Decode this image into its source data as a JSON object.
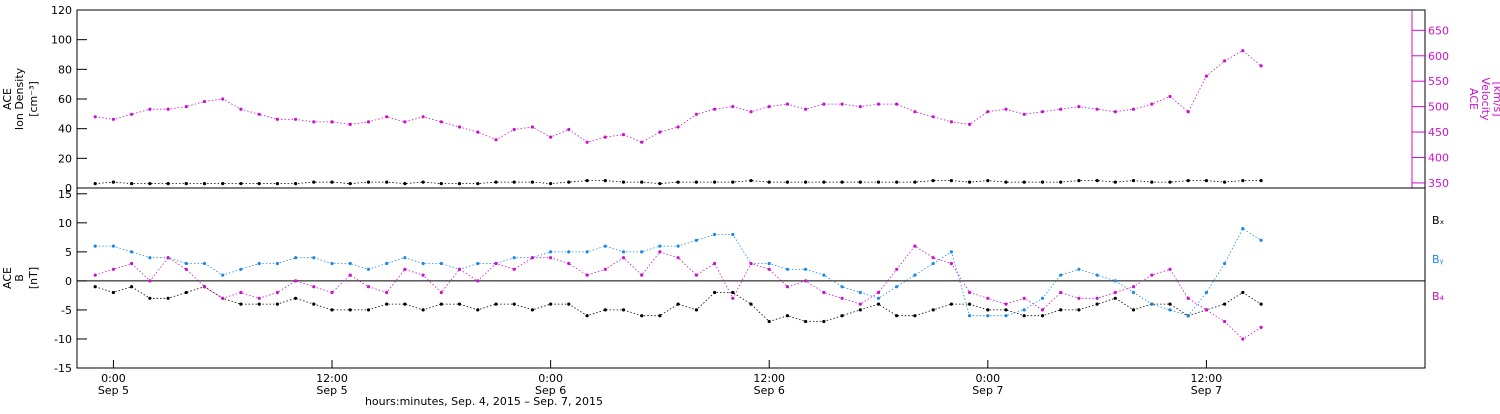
{
  "colors": {
    "density": "#000000",
    "velocity": "#cc11cc",
    "bx": "#000000",
    "by": "#1e88e5",
    "bz": "#cc11cc",
    "axis": "#000000"
  },
  "chart_data": [
    {
      "type": "scatter",
      "panel": "top",
      "ylabel_lines": [
        "ACE",
        "Ion Density",
        "[cm⁻³]"
      ],
      "ylim": [
        0,
        120
      ],
      "yticks": [
        0,
        20,
        40,
        60,
        80,
        100,
        120
      ],
      "y2label_lines": [
        "ACE",
        "Velocity",
        "[km/s]"
      ],
      "y2lim": [
        340,
        690
      ],
      "y2ticks": [
        350,
        400,
        450,
        500,
        550,
        600,
        650
      ],
      "series": [
        {
          "key": "density",
          "axis": "left",
          "x_hours": [
            -1,
            0,
            1,
            2,
            3,
            4,
            5,
            6,
            7,
            8,
            9,
            10,
            11,
            12,
            13,
            14,
            15,
            16,
            17,
            18,
            19,
            20,
            21,
            22,
            23,
            24,
            25,
            26,
            27,
            28,
            29,
            30,
            31,
            32,
            33,
            34,
            35,
            36,
            37,
            38,
            39,
            40,
            41,
            42,
            43,
            44,
            45,
            46,
            47,
            48,
            49,
            50,
            51,
            52,
            53,
            54,
            55,
            56,
            57,
            58,
            59,
            60,
            61,
            62,
            63
          ],
          "values": [
            3,
            4,
            3,
            3,
            3,
            3,
            3,
            3,
            3,
            3,
            3,
            3,
            4,
            4,
            3,
            4,
            4,
            3,
            4,
            3,
            3,
            3,
            4,
            4,
            4,
            3,
            4,
            5,
            5,
            4,
            4,
            3,
            4,
            4,
            4,
            4,
            5,
            4,
            4,
            4,
            4,
            4,
            4,
            4,
            4,
            4,
            5,
            5,
            4,
            5,
            4,
            4,
            4,
            4,
            5,
            5,
            4,
            5,
            4,
            4,
            5,
            5,
            4,
            5,
            5
          ]
        },
        {
          "key": "velocity",
          "axis": "right",
          "x_hours": [
            -1,
            0,
            1,
            2,
            3,
            4,
            5,
            6,
            7,
            8,
            9,
            10,
            11,
            12,
            13,
            14,
            15,
            16,
            17,
            18,
            19,
            20,
            21,
            22,
            23,
            24,
            25,
            26,
            27,
            28,
            29,
            30,
            31,
            32,
            33,
            34,
            35,
            36,
            37,
            38,
            39,
            40,
            41,
            42,
            43,
            44,
            45,
            46,
            47,
            48,
            49,
            50,
            51,
            52,
            53,
            54,
            55,
            56,
            57,
            58,
            59,
            60,
            61,
            62,
            63
          ],
          "values": [
            480,
            475,
            485,
            495,
            495,
            500,
            510,
            515,
            495,
            485,
            475,
            475,
            470,
            470,
            465,
            470,
            480,
            470,
            480,
            470,
            460,
            450,
            435,
            455,
            460,
            440,
            455,
            430,
            440,
            445,
            430,
            450,
            460,
            485,
            495,
            500,
            490,
            500,
            505,
            495,
            505,
            505,
            500,
            505,
            505,
            490,
            480,
            470,
            465,
            490,
            495,
            485,
            490,
            495,
            500,
            495,
            490,
            495,
            505,
            520,
            490,
            560,
            590,
            610,
            580
          ]
        }
      ]
    },
    {
      "type": "scatter",
      "panel": "bottom",
      "ylabel_lines": [
        "ACE",
        "B",
        "[nT]"
      ],
      "ylim": [
        -15,
        16
      ],
      "yticks": [
        -15,
        -10,
        -5,
        0,
        5,
        10,
        15
      ],
      "zero_line": 0,
      "legend": [
        "Bₓ",
        "Bᵧ",
        "B₄"
      ],
      "legend_placement": "right",
      "series": [
        {
          "key": "bx",
          "name": "Bx",
          "x_hours": [
            -1,
            0,
            1,
            2,
            3,
            4,
            5,
            6,
            7,
            8,
            9,
            10,
            11,
            12,
            13,
            14,
            15,
            16,
            17,
            18,
            19,
            20,
            21,
            22,
            23,
            24,
            25,
            26,
            27,
            28,
            29,
            30,
            31,
            32,
            33,
            34,
            35,
            36,
            37,
            38,
            39,
            40,
            41,
            42,
            43,
            44,
            45,
            46,
            47,
            48,
            49,
            50,
            51,
            52,
            53,
            54,
            55,
            56,
            57,
            58,
            59,
            60,
            61,
            62,
            63
          ],
          "values": [
            -1,
            -2,
            -1,
            -3,
            -3,
            -2,
            -1,
            -3,
            -4,
            -4,
            -4,
            -3,
            -4,
            -5,
            -5,
            -5,
            -4,
            -4,
            -5,
            -4,
            -4,
            -5,
            -4,
            -4,
            -5,
            -4,
            -4,
            -6,
            -5,
            -5,
            -6,
            -6,
            -4,
            -5,
            -2,
            -2,
            -4,
            -7,
            -6,
            -7,
            -7,
            -6,
            -5,
            -4,
            -6,
            -6,
            -5,
            -4,
            -4,
            -5,
            -5,
            -6,
            -6,
            -5,
            -5,
            -4,
            -3,
            -5,
            -4,
            -4,
            -6,
            -5,
            -4,
            -2,
            -4
          ]
        },
        {
          "key": "by",
          "name": "By",
          "x_hours": [
            -1,
            0,
            1,
            2,
            3,
            4,
            5,
            6,
            7,
            8,
            9,
            10,
            11,
            12,
            13,
            14,
            15,
            16,
            17,
            18,
            19,
            20,
            21,
            22,
            23,
            24,
            25,
            26,
            27,
            28,
            29,
            30,
            31,
            32,
            33,
            34,
            35,
            36,
            37,
            38,
            39,
            40,
            41,
            42,
            43,
            44,
            45,
            46,
            47,
            48,
            49,
            50,
            51,
            52,
            53,
            54,
            55,
            56,
            57,
            58,
            59,
            60,
            61,
            62,
            63
          ],
          "values": [
            6,
            6,
            5,
            4,
            4,
            3,
            3,
            1,
            2,
            3,
            3,
            4,
            4,
            3,
            3,
            2,
            3,
            4,
            3,
            3,
            2,
            3,
            3,
            4,
            4,
            5,
            5,
            5,
            6,
            5,
            5,
            6,
            6,
            7,
            8,
            8,
            3,
            3,
            2,
            2,
            1,
            -1,
            -2,
            -3,
            -1,
            1,
            3,
            5,
            -6,
            -6,
            -6,
            -5,
            -3,
            1,
            2,
            1,
            0,
            -2,
            -4,
            -5,
            -6,
            -2,
            3,
            9,
            7
          ]
        },
        {
          "key": "bz",
          "name": "Bz",
          "x_hours": [
            -1,
            0,
            1,
            2,
            3,
            4,
            5,
            6,
            7,
            8,
            9,
            10,
            11,
            12,
            13,
            14,
            15,
            16,
            17,
            18,
            19,
            20,
            21,
            22,
            23,
            24,
            25,
            26,
            27,
            28,
            29,
            30,
            31,
            32,
            33,
            34,
            35,
            36,
            37,
            38,
            39,
            40,
            41,
            42,
            43,
            44,
            45,
            46,
            47,
            48,
            49,
            50,
            51,
            52,
            53,
            54,
            55,
            56,
            57,
            58,
            59,
            60,
            61,
            62,
            63
          ],
          "values": [
            1,
            2,
            3,
            0,
            4,
            2,
            -1,
            -3,
            -2,
            -3,
            -2,
            0,
            -1,
            -2,
            1,
            -1,
            -2,
            2,
            1,
            -2,
            2,
            0,
            3,
            2,
            4,
            4,
            3,
            1,
            2,
            4,
            1,
            5,
            4,
            1,
            3,
            -3,
            3,
            2,
            -1,
            0,
            -2,
            -3,
            -4,
            -2,
            2,
            6,
            4,
            3,
            -2,
            -3,
            -4,
            -3,
            -5,
            -2,
            -3,
            -3,
            -2,
            -1,
            1,
            2,
            -3,
            -5,
            -7,
            -10,
            -8
          ]
        }
      ]
    }
  ],
  "x_axis": {
    "xlim_hours": [
      -2,
      72
    ],
    "ticks": [
      {
        "hours": 0,
        "time": "0:00",
        "date": "Sep 5"
      },
      {
        "hours": 12,
        "time": "12:00",
        "date": "Sep 5"
      },
      {
        "hours": 24,
        "time": "0:00",
        "date": "Sep 6"
      },
      {
        "hours": 36,
        "time": "12:00",
        "date": "Sep 6"
      },
      {
        "hours": 48,
        "time": "0:00",
        "date": "Sep 7"
      },
      {
        "hours": 60,
        "time": "12:00",
        "date": "Sep 7"
      }
    ],
    "xlabel": "hours:minutes, Sep.  4, 2015 – Sep.  7, 2015"
  }
}
